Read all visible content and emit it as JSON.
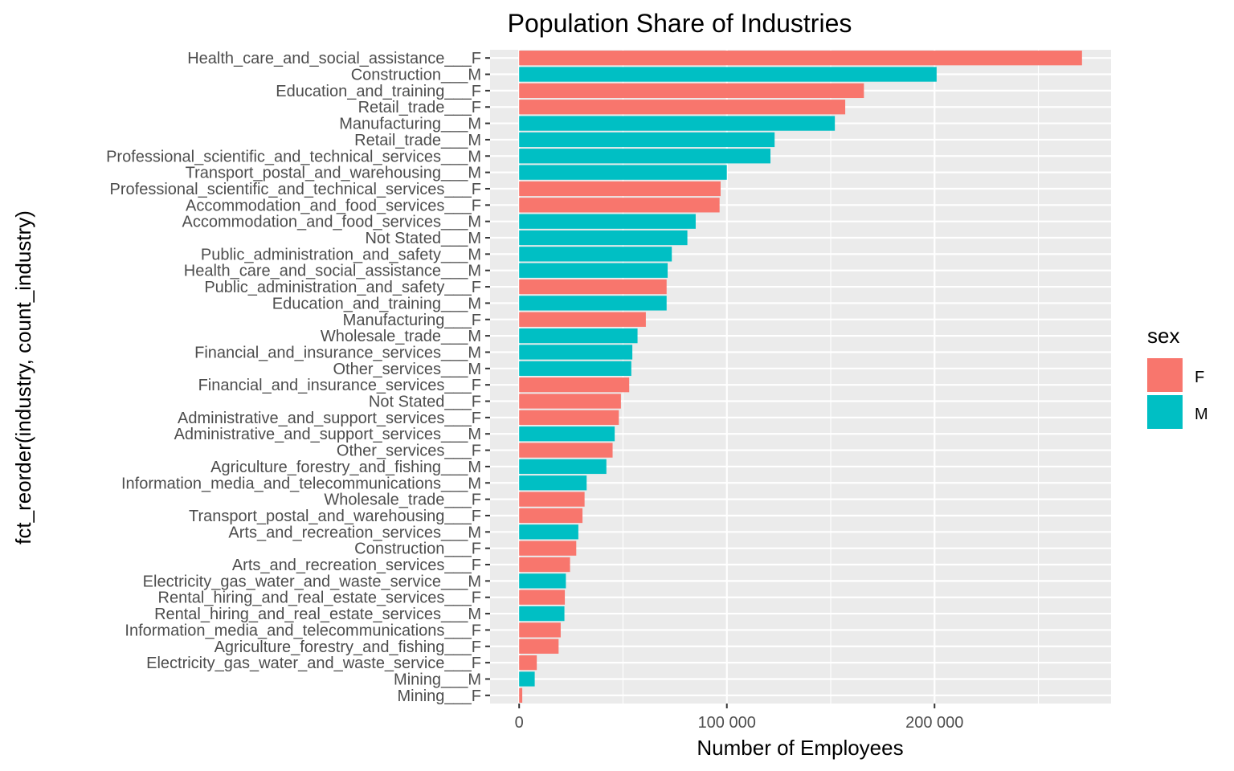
{
  "chart_data": {
    "type": "bar",
    "orientation": "horizontal",
    "title": "Population Share of Industries",
    "xlabel": "Number of Employees",
    "ylabel": "fct_reorder(industry, count_industry)",
    "xlim": [
      -14000,
      285000
    ],
    "x_ticks": [
      {
        "value": 0,
        "label": "0"
      },
      {
        "value": 100000,
        "label": "100 000"
      },
      {
        "value": 200000,
        "label": "200 000"
      }
    ],
    "legend": {
      "title": "sex",
      "position": "right",
      "items": [
        {
          "key": "F",
          "label": "F",
          "color": "#F8766D"
        },
        {
          "key": "M",
          "label": "M",
          "color": "#00BFC4"
        }
      ]
    },
    "panel_background": "#EBEBEB",
    "grid_color": "#FFFFFF",
    "bars": [
      {
        "category": "Health_care_and_social_assistance___F",
        "sex": "F",
        "value": 271000
      },
      {
        "category": "Construction___M",
        "sex": "M",
        "value": 201000
      },
      {
        "category": "Education_and_training___F",
        "sex": "F",
        "value": 166000
      },
      {
        "category": "Retail_trade___F",
        "sex": "F",
        "value": 157000
      },
      {
        "category": "Manufacturing___M",
        "sex": "M",
        "value": 152000
      },
      {
        "category": "Retail_trade___M",
        "sex": "M",
        "value": 123000
      },
      {
        "category": "Professional_scientific_and_technical_services___M",
        "sex": "M",
        "value": 121000
      },
      {
        "category": "Transport_postal_and_warehousing___M",
        "sex": "M",
        "value": 100000
      },
      {
        "category": "Professional_scientific_and_technical_services___F",
        "sex": "F",
        "value": 97000
      },
      {
        "category": "Accommodation_and_food_services___F",
        "sex": "F",
        "value": 96500
      },
      {
        "category": "Accommodation_and_food_services___M",
        "sex": "M",
        "value": 85000
      },
      {
        "category": "Not Stated___M",
        "sex": "M",
        "value": 81000
      },
      {
        "category": "Public_administration_and_safety___M",
        "sex": "M",
        "value": 73500
      },
      {
        "category": "Health_care_and_social_assistance___M",
        "sex": "M",
        "value": 71500
      },
      {
        "category": "Public_administration_and_safety___F",
        "sex": "F",
        "value": 71000
      },
      {
        "category": "Education_and_training___M",
        "sex": "M",
        "value": 71000
      },
      {
        "category": "Manufacturing___F",
        "sex": "F",
        "value": 61000
      },
      {
        "category": "Wholesale_trade___M",
        "sex": "M",
        "value": 57000
      },
      {
        "category": "Financial_and_insurance_services___M",
        "sex": "M",
        "value": 54500
      },
      {
        "category": "Other_services___M",
        "sex": "M",
        "value": 54000
      },
      {
        "category": "Financial_and_insurance_services___F",
        "sex": "F",
        "value": 53000
      },
      {
        "category": "Not Stated___F",
        "sex": "F",
        "value": 49000
      },
      {
        "category": "Administrative_and_support_services___F",
        "sex": "F",
        "value": 48000
      },
      {
        "category": "Administrative_and_support_services___M",
        "sex": "M",
        "value": 46000
      },
      {
        "category": "Other_services___F",
        "sex": "F",
        "value": 45000
      },
      {
        "category": "Agriculture_forestry_and_fishing___M",
        "sex": "M",
        "value": 42000
      },
      {
        "category": "Information_media_and_telecommunications___M",
        "sex": "M",
        "value": 32500
      },
      {
        "category": "Wholesale_trade___F",
        "sex": "F",
        "value": 31500
      },
      {
        "category": "Transport_postal_and_warehousing___F",
        "sex": "F",
        "value": 30500
      },
      {
        "category": "Arts_and_recreation_services___M",
        "sex": "M",
        "value": 28500
      },
      {
        "category": "Construction___F",
        "sex": "F",
        "value": 27500
      },
      {
        "category": "Arts_and_recreation_services___F",
        "sex": "F",
        "value": 24500
      },
      {
        "category": "Electricity_gas_water_and_waste_service___M",
        "sex": "M",
        "value": 22500
      },
      {
        "category": "Rental_hiring_and_real_estate_services___F",
        "sex": "F",
        "value": 22000
      },
      {
        "category": "Rental_hiring_and_real_estate_services___M",
        "sex": "M",
        "value": 21800
      },
      {
        "category": "Information_media_and_telecommunications___F",
        "sex": "F",
        "value": 20000
      },
      {
        "category": "Agriculture_forestry_and_fishing___F",
        "sex": "F",
        "value": 19000
      },
      {
        "category": "Electricity_gas_water_and_waste_service___F",
        "sex": "F",
        "value": 8500
      },
      {
        "category": "Mining___M",
        "sex": "M",
        "value": 7500
      },
      {
        "category": "Mining___F",
        "sex": "F",
        "value": 1500
      }
    ]
  }
}
